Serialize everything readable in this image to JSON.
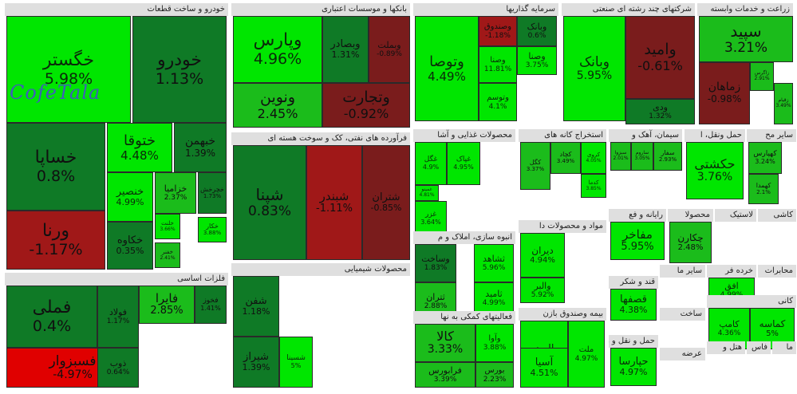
{
  "watermark": "CofeTala",
  "colors": {
    "pos_strong": "#00e600",
    "pos_mid": "#1bbc1b",
    "pos_weak": "#0f7a26",
    "neg_weak": "#7a1c1c",
    "neg_mid": "#a01818",
    "neg_strong": "#e00000"
  },
  "chart_data": {
    "type": "treemap",
    "value_unit": "%",
    "sectors": [
      {
        "name": "خودرو و ساخت قطعات",
        "stocks": [
          {
            "symbol": "خگستر",
            "change": 5.98
          },
          {
            "symbol": "خودرو",
            "change": 1.13
          },
          {
            "symbol": "خساپا",
            "change": 0.8
          },
          {
            "symbol": "ختوقا",
            "change": 4.48
          },
          {
            "symbol": "خبهمن",
            "change": 1.39
          },
          {
            "symbol": "ورنا",
            "change": -1.17
          },
          {
            "symbol": "خنصیر",
            "change": 4.99
          },
          {
            "symbol": "خزامیا",
            "change": 2.37
          },
          {
            "symbol": "خچرخش",
            "change": 1.73
          },
          {
            "symbol": "خکاوه",
            "change": 0.35
          },
          {
            "symbol": "خلنت",
            "change": 3.66
          },
          {
            "symbol": "خفنر",
            "change": 2.41
          },
          {
            "symbol": "خکار",
            "change": 3.88
          }
        ]
      },
      {
        "name": "بانکها و موسسات اعتباری",
        "stocks": [
          {
            "symbol": "وپارس",
            "change": 4.96
          },
          {
            "symbol": "وبصادر",
            "change": 1.31
          },
          {
            "symbol": "وبملت",
            "change": -0.89
          },
          {
            "symbol": "ونوین",
            "change": 2.45
          },
          {
            "symbol": "وتجارت",
            "change": -0.92
          }
        ]
      },
      {
        "name": "سرمایه گذاریها",
        "stocks": [
          {
            "symbol": "وتوصا",
            "change": 4.49
          },
          {
            "symbol": "وصندوق",
            "change": -1.18
          },
          {
            "symbol": "وبانک",
            "change": 0.6
          },
          {
            "symbol": "ومعادن",
            "change": -3.25
          },
          {
            "symbol": "وصنا",
            "change": 11.81
          },
          {
            "symbol": "وصنا",
            "change": 3.75
          },
          {
            "symbol": "وتوسم",
            "change": 4.1
          }
        ]
      },
      {
        "name": "شرکتهای چند رشته ای صنعتی",
        "stocks": [
          {
            "symbol": "وبانک",
            "change": 5.95
          },
          {
            "symbol": "وامید",
            "change": -0.61
          },
          {
            "symbol": "ودی",
            "change": 1.32
          }
        ]
      },
      {
        "name": "زراعت و خدمات وابسته",
        "stocks": [
          {
            "symbol": "سپید",
            "change": 3.21
          },
          {
            "symbol": "زاگرس",
            "change": 2.91
          },
          {
            "symbol": "زماهان",
            "change": -0.98
          },
          {
            "symbol": "زقیام",
            "change": 3.49
          }
        ]
      },
      {
        "name": "فرآورده های نفتی، کک و سوخت هسته ای",
        "stocks": [
          {
            "symbol": "شپنا",
            "change": 0.83
          },
          {
            "symbol": "شبندر",
            "change": -1.11
          },
          {
            "symbol": "شتران",
            "change": -0.85
          }
        ]
      },
      {
        "name": "محصولات غذایی و آشا",
        "stocks": [
          {
            "symbol": "غگل",
            "change": 4.9
          },
          {
            "symbol": "غپاک",
            "change": 4.95
          },
          {
            "symbol": "غزر",
            "change": 3.64
          },
          {
            "symbol": "غمینو",
            "change": 4.81
          }
        ]
      },
      {
        "name": "استخراج کانه های",
        "stocks": [
          {
            "symbol": "کگل",
            "change": 3.37
          },
          {
            "symbol": "کچاد",
            "change": 3.49
          },
          {
            "symbol": "کدما",
            "change": 3.85
          },
          {
            "symbol": "کروی",
            "change": 4.05
          }
        ]
      },
      {
        "name": "سیمان، آهک و",
        "stocks": [
          {
            "symbol": "سبزوا",
            "change": 2.01
          },
          {
            "symbol": "ساروم",
            "change": 3.05
          },
          {
            "symbol": "سفار",
            "change": 2.93
          }
        ]
      },
      {
        "name": "حمل ونقل، ا",
        "stocks": [
          {
            "symbol": "حکشتی",
            "change": 3.76
          }
        ]
      },
      {
        "name": "سایر مح",
        "stocks": [
          {
            "symbol": "کهپارس",
            "change": 3.24
          },
          {
            "symbol": "کهمدا",
            "change": 2.1
          }
        ]
      },
      {
        "name": "انبوه سازی، املاک و م",
        "stocks": [
          {
            "symbol": "وساخت",
            "change": 1.83
          },
          {
            "symbol": "ثشاهد",
            "change": 5.96
          },
          {
            "symbol": "ثتران",
            "change": 2.88
          },
          {
            "symbol": "ثامید",
            "change": 4.99
          }
        ]
      },
      {
        "name": "مواد و محصولات دا",
        "stocks": [
          {
            "symbol": "دیران",
            "change": 4.94
          },
          {
            "symbol": "والبر",
            "change": 5.92
          }
        ]
      },
      {
        "name": "رایانه و فع",
        "stocks": [
          {
            "symbol": "مفاخر",
            "change": 5.95
          }
        ]
      },
      {
        "name": "محصولا",
        "stocks": [
          {
            "symbol": "چکارن",
            "change": 2.48
          }
        ]
      },
      {
        "name": "لاستیک",
        "stocks": []
      },
      {
        "name": "کاشی",
        "stocks": []
      },
      {
        "name": "فلزات اساسی",
        "stocks": [
          {
            "symbol": "فملی",
            "change": 0.4
          },
          {
            "symbol": "فولاد",
            "change": 1.17
          },
          {
            "symbol": "فسبزوار",
            "change": -4.97
          },
          {
            "symbol": "فایرا",
            "change": 2.85
          },
          {
            "symbol": "فخوز",
            "change": 1.41
          },
          {
            "symbol": "ذوب",
            "change": 0.64
          }
        ]
      },
      {
        "name": "محصولات شیمیایی",
        "stocks": [
          {
            "symbol": "شفن",
            "change": 1.18
          },
          {
            "symbol": "شیراز",
            "change": 1.39
          },
          {
            "symbol": "شسینا",
            "change": 5
          }
        ]
      },
      {
        "name": "فعالیتهای کمکی به نها",
        "stocks": [
          {
            "symbol": "کالا",
            "change": 3.33
          },
          {
            "symbol": "فرابورس",
            "change": 3.39
          },
          {
            "symbol": "وآوا",
            "change": 3.88
          },
          {
            "symbol": "بورس",
            "change": 2.23
          }
        ]
      },
      {
        "name": "بیمه وصندوق بازن",
        "stocks": [
          {
            "symbol": "البرز",
            "change": 4.74
          },
          {
            "symbol": "آسیا",
            "change": 4.51
          },
          {
            "symbol": "ملت",
            "change": 4.97
          }
        ]
      },
      {
        "name": "قند و شکر",
        "stocks": [
          {
            "symbol": "قصفها",
            "change": 4.38
          }
        ]
      },
      {
        "name": "سایر ما",
        "stocks": []
      },
      {
        "name": "خرده فر",
        "stocks": [
          {
            "symbol": "افق",
            "change": 4.99
          }
        ]
      },
      {
        "name": "محابرات",
        "stocks": []
      },
      {
        "name": "ساخت",
        "stocks": []
      },
      {
        "name": "کانی",
        "stocks": [
          {
            "symbol": "کامپ",
            "change": 4.36
          },
          {
            "symbol": "کماسه",
            "change": 5
          }
        ]
      },
      {
        "name": "حمل و نقل و رس",
        "stocks": [
          {
            "symbol": "حپارسا",
            "change": 4.97
          }
        ]
      },
      {
        "name": "عرضه",
        "stocks": []
      },
      {
        "name": "هتل و",
        "stocks": []
      },
      {
        "name": "فاس",
        "stocks": []
      },
      {
        "name": "ما",
        "stocks": []
      },
      {
        "name": "",
        "stocks": []
      }
    ]
  }
}
